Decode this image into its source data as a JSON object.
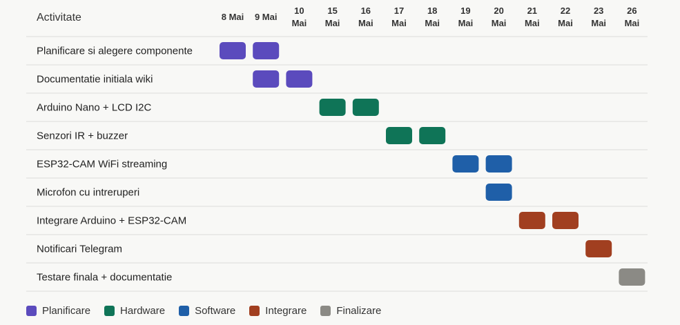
{
  "chart_data": {
    "type": "gantt",
    "header_label": "Activitate",
    "dates": [
      [
        "8 Mai"
      ],
      [
        "9 Mai"
      ],
      [
        "10",
        "Mai"
      ],
      [
        "15",
        "Mai"
      ],
      [
        "16",
        "Mai"
      ],
      [
        "17",
        "Mai"
      ],
      [
        "18",
        "Mai"
      ],
      [
        "19",
        "Mai"
      ],
      [
        "20",
        "Mai"
      ],
      [
        "21",
        "Mai"
      ],
      [
        "22",
        "Mai"
      ],
      [
        "23",
        "Mai"
      ],
      [
        "26",
        "Mai"
      ]
    ],
    "tasks": [
      {
        "label": "Planificare si alegere componente",
        "category": "planificare",
        "days": [
          0,
          1
        ]
      },
      {
        "label": "Documentatie initiala wiki",
        "category": "planificare",
        "days": [
          1,
          2
        ]
      },
      {
        "label": "Arduino Nano + LCD I2C",
        "category": "hardware",
        "days": [
          3,
          4
        ]
      },
      {
        "label": "Senzori IR + buzzer",
        "category": "hardware",
        "days": [
          5,
          6
        ]
      },
      {
        "label": "ESP32-CAM WiFi streaming",
        "category": "software",
        "days": [
          7,
          8
        ]
      },
      {
        "label": "Microfon cu intreruperi",
        "category": "software",
        "days": [
          8
        ]
      },
      {
        "label": "Integrare Arduino + ESP32-CAM",
        "category": "integrare",
        "days": [
          9,
          10
        ]
      },
      {
        "label": "Notificari Telegram",
        "category": "integrare",
        "days": [
          11
        ]
      },
      {
        "label": "Testare finala + documentatie",
        "category": "finalizare",
        "days": [
          12
        ]
      }
    ],
    "legend": [
      {
        "key": "planificare",
        "label": "Planificare",
        "color": "#5b4bbd"
      },
      {
        "key": "hardware",
        "label": "Hardware",
        "color": "#0f7457"
      },
      {
        "key": "software",
        "label": "Software",
        "color": "#1f5fa8"
      },
      {
        "key": "integrare",
        "label": "Integrare",
        "color": "#a13f20"
      },
      {
        "key": "finalizare",
        "label": "Finalizare",
        "color": "#8b8a85"
      }
    ]
  }
}
